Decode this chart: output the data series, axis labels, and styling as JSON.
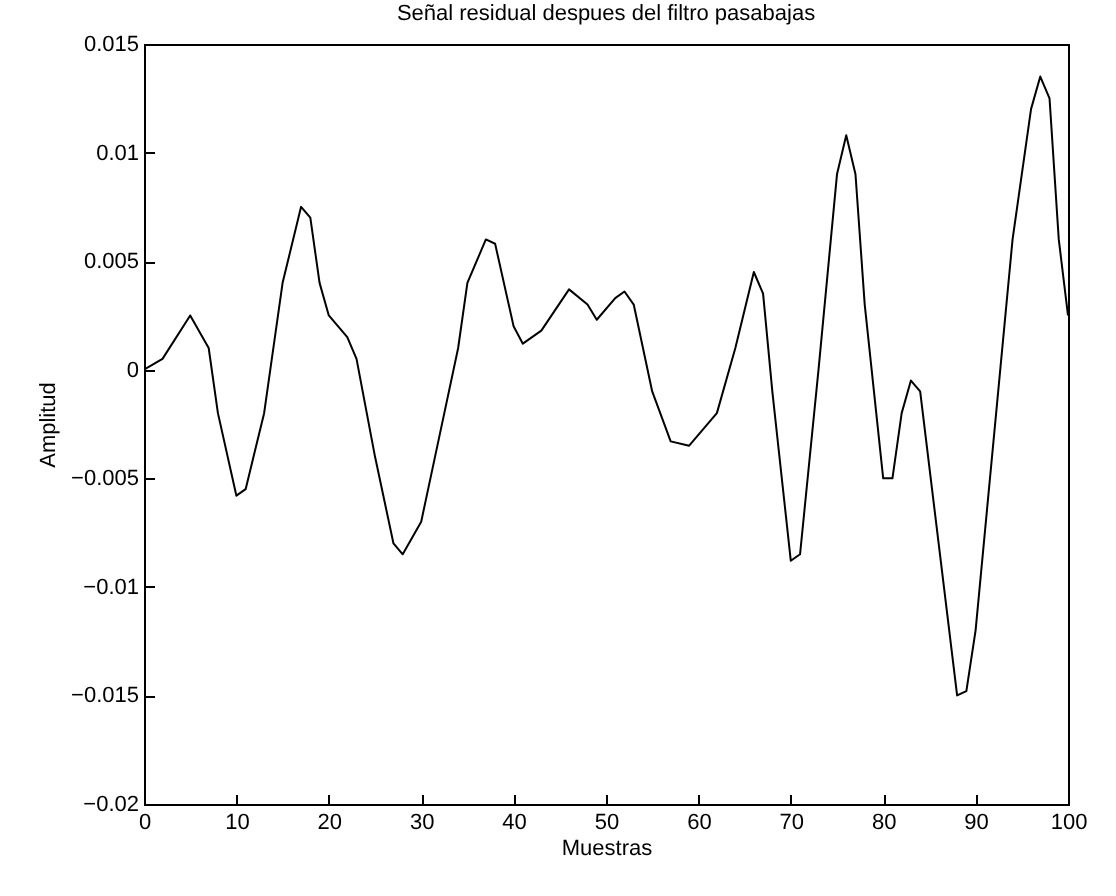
{
  "chart_data": {
    "type": "line",
    "title": "Señal residual despues del filtro pasabajas",
    "xlabel": "Muestras",
    "ylabel": "Amplitud",
    "x": [
      0,
      2,
      5,
      7,
      8,
      10,
      11,
      13,
      15,
      17,
      18,
      19,
      20,
      22,
      23,
      25,
      27,
      28,
      30,
      32,
      34,
      35,
      37,
      38,
      40,
      41,
      43,
      46,
      48,
      49,
      51,
      52,
      53,
      55,
      57,
      59,
      62,
      64,
      66,
      67,
      68,
      70,
      71,
      73,
      75,
      76,
      77,
      78,
      80,
      81,
      82,
      83,
      84,
      86,
      88,
      89,
      90,
      92,
      94,
      96,
      97,
      98,
      99,
      100
    ],
    "series": [
      {
        "color": "#000000",
        "values": [
          0,
          0.0005,
          0.0025,
          0.001,
          -0.002,
          -0.0058,
          -0.0055,
          -0.002,
          0.004,
          0.0075,
          0.007,
          0.004,
          0.0025,
          0.0015,
          0.0005,
          -0.004,
          -0.008,
          -0.0085,
          -0.007,
          -0.003,
          0.001,
          0.004,
          0.006,
          0.0058,
          0.002,
          0.0012,
          0.0018,
          0.0037,
          0.003,
          0.0023,
          0.0033,
          0.0036,
          0.003,
          -0.001,
          -0.0033,
          -0.0035,
          -0.002,
          0.001,
          0.0045,
          0.0035,
          -0.001,
          -0.0088,
          -0.0085,
          0,
          0.009,
          0.0108,
          0.009,
          0.003,
          -0.005,
          -0.005,
          -0.002,
          -0.0005,
          -0.001,
          -0.008,
          -0.015,
          -0.0148,
          -0.012,
          -0.003,
          0.006,
          0.012,
          0.0135,
          0.0125,
          0.006,
          0.0025
        ]
      }
    ],
    "xlim": [
      0,
      100
    ],
    "xticks": [
      0,
      10,
      20,
      30,
      40,
      50,
      60,
      70,
      80,
      90,
      100
    ],
    "ylim": [
      -0.02,
      0.015
    ],
    "yticks": [
      -0.02,
      -0.015,
      -0.01,
      -0.005,
      0,
      0.005,
      0.01,
      0.015
    ],
    "grid": false,
    "legend": false,
    "marker": "none",
    "line_style": "solid"
  }
}
